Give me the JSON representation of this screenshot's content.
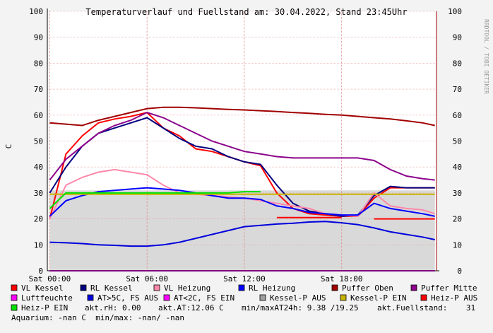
{
  "chart_data": {
    "type": "line",
    "title": "Temperaturverlauf und Fuellstand am: 30.04.2022, Stand 23:45Uhr",
    "y_label": "C",
    "side_label": "RRDTOOL / TOBI OETIKER",
    "x": [
      0,
      1,
      2,
      3,
      4,
      5,
      6,
      7,
      8,
      9,
      10,
      11,
      12,
      13,
      14,
      15,
      16,
      17,
      18,
      19,
      20,
      21,
      22,
      23,
      23.75
    ],
    "xlim": [
      -0.15,
      23.85
    ],
    "xticks": [
      {
        "value": 0,
        "label": "Sat 00:00"
      },
      {
        "value": 6,
        "label": "Sat 06:00"
      },
      {
        "value": 12,
        "label": "Sat 12:00"
      },
      {
        "value": 18,
        "label": "Sat 18:00"
      }
    ],
    "ylim": [
      0,
      100
    ],
    "yticks": [
      0,
      10,
      20,
      30,
      40,
      50,
      60,
      70,
      80,
      90,
      100
    ],
    "grid": true,
    "series": [
      {
        "name": "Kessel-P AUS",
        "color": "#a0a0a0",
        "style": "area",
        "values": [
          31,
          31,
          31,
          31,
          31,
          31,
          31,
          31,
          31,
          31,
          31,
          31,
          31,
          31,
          31,
          31,
          31,
          31,
          31,
          31,
          31,
          31,
          31,
          31,
          31
        ]
      },
      {
        "name": "VL Kessel",
        "color": "#ff0000",
        "values": [
          20,
          45,
          52,
          57,
          58.5,
          59.5,
          61,
          55,
          52,
          47,
          46,
          44,
          42,
          40.5,
          30,
          24,
          22,
          21.5,
          21,
          21,
          28,
          32,
          32,
          32,
          32
        ]
      },
      {
        "name": "RL Kessel",
        "color": "#000080",
        "values": [
          30,
          40,
          48,
          53,
          55,
          57,
          59,
          55,
          51,
          48,
          47,
          44,
          42,
          41,
          33,
          26,
          23,
          22,
          21,
          21.5,
          29,
          32.5,
          32,
          32,
          32
        ]
      },
      {
        "name": "VL Heizung",
        "color": "#ff88aa",
        "values": [
          20,
          33,
          36,
          38,
          39,
          38,
          37,
          33,
          30,
          29.5,
          29,
          28.5,
          28,
          27,
          26,
          25,
          24,
          22,
          21.5,
          21,
          30,
          25,
          24,
          23.5,
          22
        ]
      },
      {
        "name": "RL Heizung",
        "color": "#0000ff",
        "values": [
          21,
          27,
          29,
          30.5,
          31,
          31.5,
          32,
          31.5,
          31,
          30,
          29,
          28,
          28,
          27.5,
          25,
          24,
          22.5,
          22,
          21.5,
          21.5,
          26,
          24,
          23,
          22,
          21
        ]
      },
      {
        "name": "Puffer Oben",
        "color": "#a00000",
        "values": [
          57,
          56.5,
          56,
          58,
          59.5,
          61,
          62.5,
          63,
          63,
          62.8,
          62.5,
          62.2,
          62,
          61.7,
          61.4,
          61,
          60.7,
          60.3,
          60,
          59.5,
          59,
          58.5,
          57.8,
          57,
          56
        ]
      },
      {
        "name": "Puffer Mitte",
        "color": "#8b008b",
        "values": [
          35,
          43,
          48,
          53,
          56,
          58,
          61,
          59,
          56,
          53,
          50,
          48,
          46,
          45,
          44,
          43.5,
          43.5,
          43.5,
          43.5,
          43.5,
          42.5,
          39,
          36.5,
          35.5,
          35
        ]
      },
      {
        "name": "Luftfeuchte",
        "color": "#ff00ff",
        "values": [
          0,
          0,
          0,
          0,
          0,
          0,
          0,
          0,
          0,
          0,
          0,
          0,
          0,
          0,
          0,
          0,
          0,
          0,
          0,
          0,
          0,
          0,
          0,
          0,
          0
        ]
      },
      {
        "name": "AT>5C, FS AUS",
        "color": "#0000dd",
        "values": [
          11,
          10.8,
          10.5,
          10,
          9.8,
          9.5,
          9.5,
          10,
          11,
          12.5,
          14,
          15.5,
          17,
          17.5,
          18,
          18.3,
          18.8,
          19,
          18.5,
          17.8,
          16.5,
          15,
          14,
          13,
          12
        ]
      },
      {
        "name": "AT<2C, FS EIN",
        "color": "#ff00ff",
        "values": [
          null,
          null,
          null,
          null,
          null,
          null,
          null,
          null,
          null,
          null,
          null,
          null,
          null,
          null,
          null,
          null,
          null,
          null,
          null,
          null,
          null,
          null,
          null,
          null,
          null
        ]
      },
      {
        "name": "Kessel-P EIN",
        "color": "#c8b400",
        "values": [
          29.5,
          29.5,
          29.5,
          29.5,
          29.5,
          29.5,
          29.5,
          29.5,
          29.5,
          29.5,
          29.5,
          29.5,
          29.5,
          29.5,
          29.5,
          29.5,
          29.5,
          29.5,
          29.5,
          29.5,
          29.5,
          29.5,
          29.5,
          29.5,
          29.5
        ]
      },
      {
        "name": "Heiz-P AUS",
        "color": "#ff0000",
        "values": [
          null,
          null,
          null,
          null,
          null,
          null,
          null,
          null,
          null,
          null,
          null,
          null,
          null,
          null,
          20.5,
          20.5,
          20.5,
          20.5,
          20.5,
          null,
          20,
          20,
          20,
          20,
          20
        ]
      },
      {
        "name": "Heiz-P EIN",
        "color": "#00e000",
        "values": [
          24,
          30,
          30,
          30,
          30,
          30,
          30,
          30,
          30,
          30,
          30,
          30,
          30.5,
          30.5,
          null,
          null,
          null,
          null,
          null,
          30,
          null,
          null,
          null,
          null,
          null
        ]
      }
    ],
    "annotations": [
      "akt.rH: 0.00",
      "akt.AT:12.06 C",
      "min/maxAT24h: 9.38 /19.25",
      "akt.Fuellstand:    31",
      "Aquarium: -nan C  min/max: -nan/ -nan"
    ]
  }
}
